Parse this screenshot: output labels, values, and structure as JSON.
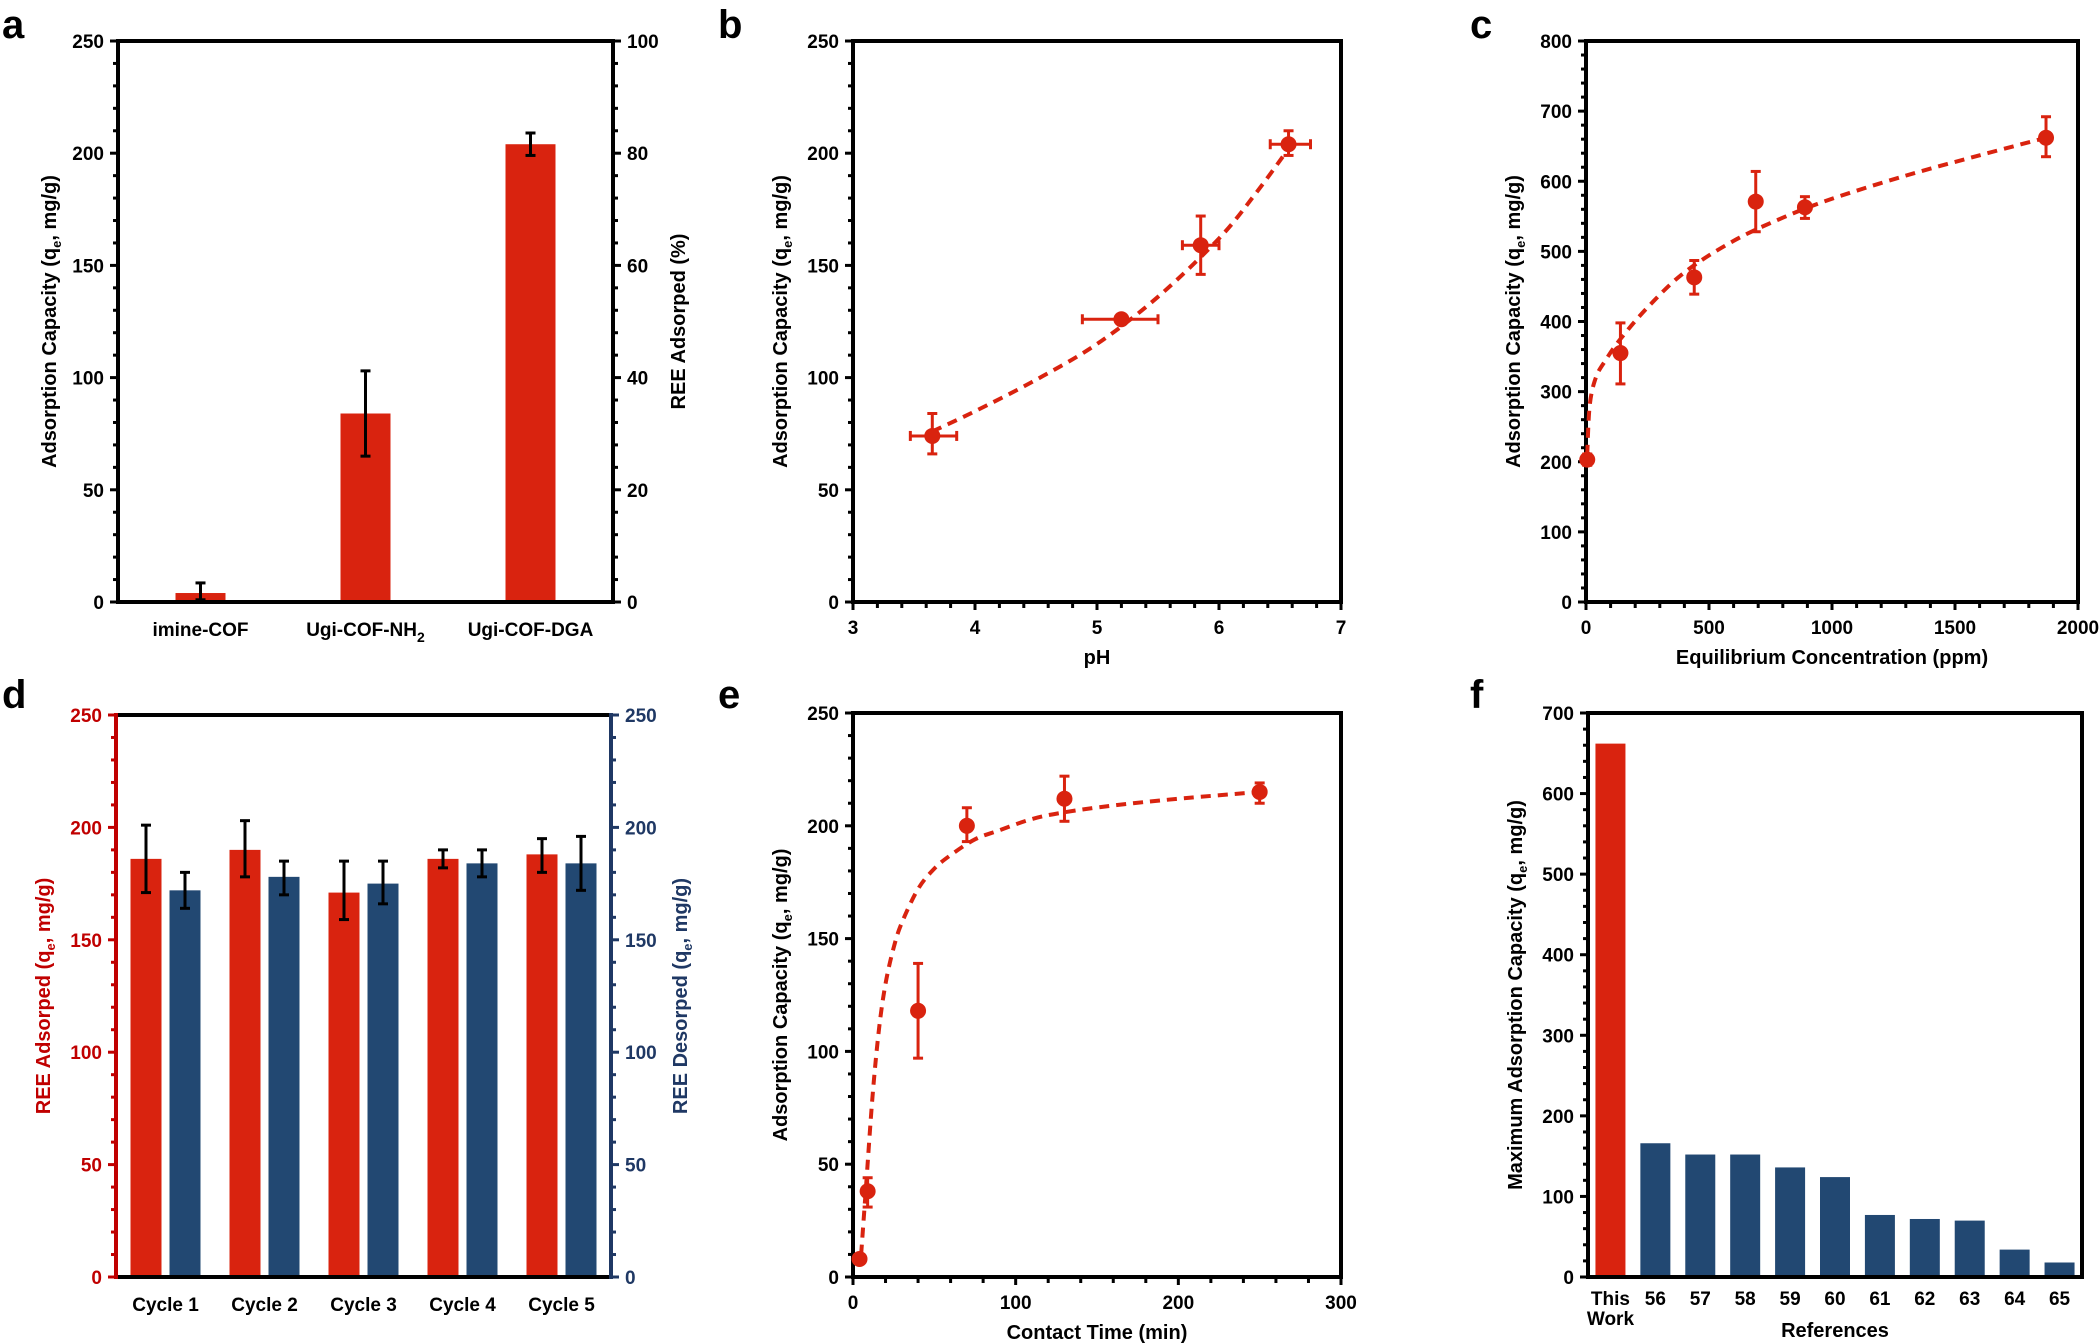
{
  "colors": {
    "red": "#d9230f",
    "blue": "#224872",
    "axis_red": "#c00000",
    "axis_blue": "#1f3864",
    "black": "#000000"
  },
  "chart_data": [
    {
      "id": "a",
      "panel_label": "a",
      "type": "bar",
      "categories": [
        "imine-COF",
        "Ugi-COF-NH2",
        "Ugi-COF-DGA"
      ],
      "category_display": [
        {
          "main": "imine-COF",
          "sub": ""
        },
        {
          "main": "Ugi-COF-NH",
          "sub": "2"
        },
        {
          "main": "Ugi-COF-DGA",
          "sub": ""
        }
      ],
      "series": [
        {
          "name": "Adsorption Capacity",
          "color": "#d9230f",
          "values": [
            4,
            84,
            204
          ],
          "err_low": [
            1,
            65,
            199
          ],
          "err_high": [
            8.5,
            103,
            209
          ]
        }
      ],
      "ylabel": "Adsorption Capacity (qe, mg/g)",
      "ylabel_parts": {
        "pre": "Adsorption Capacity (q",
        "sub": "e",
        "post": ", mg/g)"
      },
      "ylim": [
        0,
        250
      ],
      "yticks": [
        0,
        50,
        100,
        150,
        200,
        250
      ],
      "y2label": "REE Adsorped (%)",
      "y2lim": [
        0,
        100
      ],
      "y2ticks": [
        0,
        20,
        40,
        60,
        80,
        100
      ],
      "xlabel": "",
      "grid": false
    },
    {
      "id": "b",
      "panel_label": "b",
      "type": "scatter",
      "points": [
        {
          "x": 3.65,
          "y": 74,
          "xerr": [
            3.47,
            3.85
          ],
          "yerr": [
            66,
            84
          ]
        },
        {
          "x": 5.2,
          "y": 126,
          "xerr": [
            4.88,
            5.5
          ],
          "yerr": [
            125,
            128
          ]
        },
        {
          "x": 5.85,
          "y": 159,
          "xerr": [
            5.7,
            6.0
          ],
          "yerr": [
            146,
            172
          ]
        },
        {
          "x": 6.57,
          "y": 204,
          "xerr": [
            6.42,
            6.75
          ],
          "yerr": [
            199,
            210
          ]
        }
      ],
      "fit": {
        "style": "dashed",
        "x": [
          3.65,
          4.0,
          4.5,
          5.0,
          5.5,
          6.0,
          6.3,
          6.57
        ],
        "y": [
          76,
          85,
          99,
          115,
          136,
          162,
          182,
          202
        ]
      },
      "xlabel": "pH",
      "ylabel": "Adsorption Capacity (qe, mg/g)",
      "ylabel_parts": {
        "pre": "Adsorption Capacity (q",
        "sub": "e",
        "post": ", mg/g)"
      },
      "xlim": [
        3,
        7
      ],
      "xticks": [
        3,
        4,
        5,
        6,
        7
      ],
      "ylim": [
        0,
        250
      ],
      "yticks": [
        0,
        50,
        100,
        150,
        200,
        250
      ],
      "grid": false
    },
    {
      "id": "c",
      "panel_label": "c",
      "type": "scatter",
      "points": [
        {
          "x": 5,
          "y": 203,
          "yerr": [
            195,
            211
          ]
        },
        {
          "x": 140,
          "y": 355,
          "yerr": [
            311,
            398
          ]
        },
        {
          "x": 440,
          "y": 463,
          "yerr": [
            439,
            487
          ]
        },
        {
          "x": 690,
          "y": 571,
          "yerr": [
            528,
            614
          ]
        },
        {
          "x": 890,
          "y": 563,
          "yerr": [
            547,
            578
          ]
        },
        {
          "x": 1870,
          "y": 662,
          "yerr": [
            635,
            692
          ]
        }
      ],
      "fit": {
        "style": "dashed",
        "x": [
          5,
          15,
          40,
          80,
          140,
          250,
          400,
          600,
          800,
          1000,
          1300,
          1600,
          1870
        ],
        "y": [
          210,
          280,
          320,
          345,
          375,
          420,
          470,
          515,
          548,
          575,
          608,
          637,
          662
        ]
      },
      "xlabel": "Equilibrium Concentration (ppm)",
      "ylabel": "Adsorption Capacity (qe, mg/g)",
      "ylabel_parts": {
        "pre": "Adsorption Capacity (q",
        "sub": "e",
        "post": ", mg/g)"
      },
      "xlim": [
        0,
        2000
      ],
      "xticks": [
        0,
        500,
        1000,
        1500,
        2000
      ],
      "ylim": [
        0,
        800
      ],
      "yticks": [
        0,
        100,
        200,
        300,
        400,
        500,
        600,
        700,
        800
      ],
      "grid": false
    },
    {
      "id": "d",
      "panel_label": "d",
      "type": "bar",
      "categories": [
        "Cycle 1",
        "Cycle 2",
        "Cycle 3",
        "Cycle 4",
        "Cycle 5"
      ],
      "series": [
        {
          "name": "REE Adsorped",
          "color": "#d9230f",
          "values": [
            186,
            190,
            171,
            186,
            188
          ],
          "err_low": [
            171,
            178,
            159,
            182,
            180
          ],
          "err_high": [
            201,
            203,
            185,
            190,
            195
          ]
        },
        {
          "name": "REE Desorped",
          "color": "#224872",
          "values": [
            172,
            178,
            175,
            184,
            184
          ],
          "err_low": [
            164,
            170,
            166,
            178,
            172
          ],
          "err_high": [
            180,
            185,
            185,
            190,
            196
          ]
        }
      ],
      "ylabel": "REE Adsorped (qe, mg/g)",
      "ylabel_parts": {
        "pre": "REE Adsorped (q",
        "sub": "e",
        "post": ", mg/g)"
      },
      "ylim": [
        0,
        250
      ],
      "yticks": [
        0,
        50,
        100,
        150,
        200,
        250
      ],
      "y2label": "REE Desorped (qe, mg/g)",
      "y2label_parts": {
        "pre": "REE Desorped (q",
        "sub": "e",
        "post": ", mg/g)"
      },
      "y2lim": [
        0,
        250
      ],
      "y2ticks": [
        0,
        50,
        100,
        150,
        200,
        250
      ],
      "xlabel": "",
      "grid": false
    },
    {
      "id": "e",
      "panel_label": "e",
      "type": "scatter",
      "points": [
        {
          "x": 4,
          "y": 8,
          "yerr": [
            7,
            9
          ]
        },
        {
          "x": 9,
          "y": 38,
          "yerr": [
            31,
            44
          ]
        },
        {
          "x": 40,
          "y": 118,
          "yerr": [
            97,
            139
          ]
        },
        {
          "x": 70,
          "y": 200,
          "yerr": [
            193,
            208
          ]
        },
        {
          "x": 130,
          "y": 212,
          "yerr": [
            202,
            222
          ]
        },
        {
          "x": 250,
          "y": 215,
          "yerr": [
            210,
            219
          ]
        }
      ],
      "fit": {
        "style": "dashed",
        "x": [
          5,
          8,
          12,
          16,
          20,
          25,
          30,
          40,
          50,
          60,
          75,
          90,
          110,
          130,
          160,
          200,
          250
        ],
        "y": [
          10,
          40,
          80,
          110,
          130,
          146,
          157,
          172,
          181,
          187,
          194,
          198,
          203,
          206,
          209,
          212,
          215
        ]
      },
      "xlabel": "Contact Time (min)",
      "ylabel": "Adsorption Capacity (qe, mg/g)",
      "ylabel_parts": {
        "pre": "Adsorption Capacity (q",
        "sub": "e",
        "post": ", mg/g)"
      },
      "xlim": [
        0,
        300
      ],
      "xticks": [
        0,
        100,
        200,
        300
      ],
      "ylim": [
        0,
        250
      ],
      "yticks": [
        0,
        50,
        100,
        150,
        200,
        250
      ],
      "grid": false
    },
    {
      "id": "f",
      "panel_label": "f",
      "type": "bar",
      "categories": [
        "This Work",
        "56",
        "57",
        "58",
        "59",
        "60",
        "61",
        "62",
        "63",
        "64",
        "65"
      ],
      "category_display": [
        {
          "main": "This",
          "line2": "Work"
        },
        {
          "main": "56"
        },
        {
          "main": "57"
        },
        {
          "main": "58"
        },
        {
          "main": "59"
        },
        {
          "main": "60"
        },
        {
          "main": "61"
        },
        {
          "main": "62"
        },
        {
          "main": "63"
        },
        {
          "main": "64"
        },
        {
          "main": "65"
        }
      ],
      "values": [
        662,
        166,
        152,
        152,
        136,
        124,
        77,
        72,
        70,
        34,
        18
      ],
      "bar_colors": [
        "#d9230f",
        "#224872",
        "#224872",
        "#224872",
        "#224872",
        "#224872",
        "#224872",
        "#224872",
        "#224872",
        "#224872",
        "#224872"
      ],
      "xlabel": "References",
      "ylabel": "Maximum Adsorption Capacity (qe, mg/g)",
      "ylabel_parts": {
        "pre": "Maximum Adsorption Capacity (q",
        "sub": "e",
        "post": ", mg/g)"
      },
      "ylim": [
        0,
        700
      ],
      "yticks": [
        0,
        100,
        200,
        300,
        400,
        500,
        600,
        700
      ],
      "grid": false
    }
  ]
}
